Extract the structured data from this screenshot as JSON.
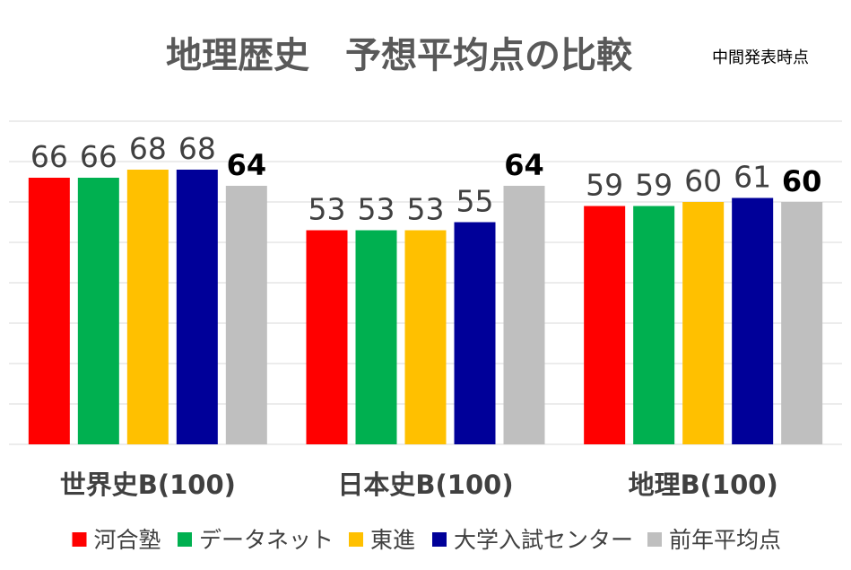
{
  "chart_data": {
    "type": "bar",
    "title": "地理歴史　予想平均点の比較",
    "subtitle": "中間発表時点",
    "categories": [
      "世界史B(100)",
      "日本史B(100)",
      "地理B(100)"
    ],
    "series": [
      {
        "name": "河合塾",
        "color": "#ff0000",
        "values": [
          66,
          53,
          59
        ]
      },
      {
        "name": "データネット",
        "color": "#00b050",
        "values": [
          66,
          53,
          59
        ]
      },
      {
        "name": "東進",
        "color": "#ffc000",
        "values": [
          68,
          53,
          60
        ]
      },
      {
        "name": "大学入試センター",
        "color": "#000099",
        "values": [
          68,
          55,
          61
        ]
      },
      {
        "name": "前年平均点",
        "color": "#bfbfbf",
        "values": [
          64,
          64,
          60
        ]
      }
    ],
    "ylim": [
      0,
      80
    ],
    "grid": true,
    "legend_position": "bottom"
  }
}
